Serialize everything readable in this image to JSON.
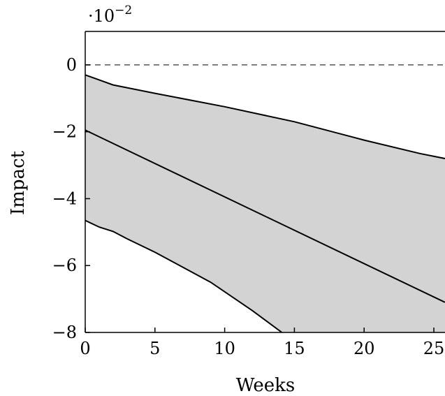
{
  "chart_data": {
    "type": "area",
    "title": "",
    "xlabel": "Weeks",
    "ylabel": "Impact",
    "y_scale_label": "·10",
    "y_scale_exponent": "−2",
    "xlim": [
      0,
      25.8
    ],
    "ylim": [
      -8,
      1
    ],
    "x_ticks": [
      0,
      5,
      10,
      15,
      20,
      25
    ],
    "y_ticks": [
      0,
      -2,
      -4,
      -6,
      -8
    ],
    "x_tick_labels": [
      "0",
      "5",
      "10",
      "15",
      "20",
      "25"
    ],
    "y_tick_labels": [
      "0",
      "−2",
      "−4",
      "−6",
      "−8"
    ],
    "grid": false,
    "reference_line": {
      "y": 0,
      "style": "dashed"
    },
    "band_color": "#d3d3d3",
    "line_color": "#000000",
    "series": [
      {
        "role": "upper",
        "x": [
          0,
          1,
          2,
          5,
          10,
          15,
          20,
          24,
          25.8
        ],
        "y": [
          -0.3,
          -0.45,
          -0.6,
          -0.85,
          -1.25,
          -1.7,
          -2.25,
          -2.65,
          -2.8
        ]
      },
      {
        "role": "center",
        "x": [
          0,
          25.8
        ],
        "y": [
          -1.95,
          -7.1
        ]
      },
      {
        "role": "lower",
        "x": [
          0,
          1,
          2,
          3,
          5,
          7,
          9,
          12,
          14.1
        ],
        "y": [
          -4.65,
          -4.85,
          -4.98,
          -5.2,
          -5.6,
          -6.05,
          -6.5,
          -7.35,
          -8.0
        ]
      }
    ]
  }
}
